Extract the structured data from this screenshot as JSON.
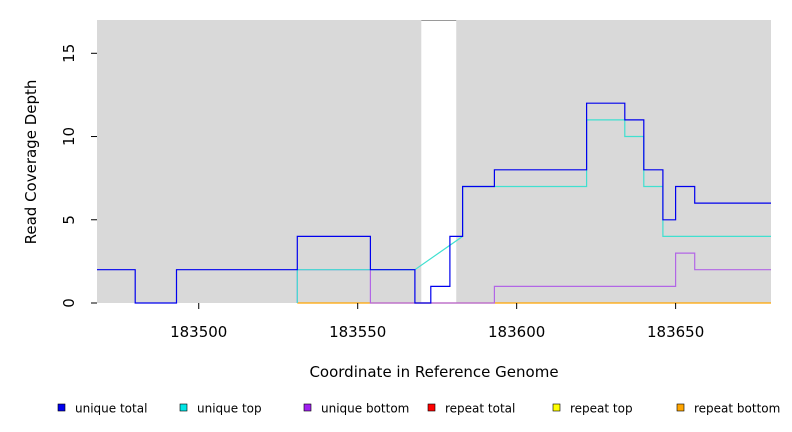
{
  "chart_data": {
    "type": "line",
    "step": true,
    "xlabel": "Coordinate in Reference Genome",
    "ylabel": "Read Coverage Depth",
    "xlim": [
      183468,
      183680
    ],
    "ylim": [
      0,
      17
    ],
    "x_ticks": [
      183500,
      183550,
      183600,
      183650
    ],
    "y_ticks": [
      0,
      5,
      10,
      15
    ],
    "grid": false,
    "background": "#d9d9d9",
    "gap_region": [
      183570,
      183581
    ],
    "legend_position": "bottom",
    "series": [
      {
        "name": "unique total",
        "color": "#0000ee",
        "x": [
          183468,
          183480,
          183480,
          183493,
          183493,
          183531,
          183531,
          183554,
          183554,
          183568,
          183568,
          183573,
          183573,
          183579,
          183579,
          183583,
          183583,
          183593,
          183593,
          183622,
          183622,
          183634,
          183634,
          183640,
          183640,
          183646,
          183646,
          183650,
          183650,
          183656,
          183656,
          183680
        ],
        "y": [
          2,
          2,
          0,
          0,
          2,
          2,
          4,
          4,
          2,
          2,
          0,
          0,
          1,
          1,
          4,
          4,
          7,
          7,
          8,
          8,
          12,
          12,
          11,
          11,
          8,
          8,
          5,
          5,
          7,
          7,
          6,
          6
        ]
      },
      {
        "name": "unique top",
        "color": "#40e0d0",
        "x": [
          183531,
          183531,
          183554,
          183554,
          183568,
          183583,
          183583,
          183593,
          183593,
          183622,
          183622,
          183634,
          183634,
          183640,
          183640,
          183646,
          183646,
          183680
        ],
        "y": [
          0,
          2,
          2,
          2,
          2,
          4,
          7,
          7,
          7,
          7,
          11,
          11,
          10,
          10,
          7,
          7,
          4,
          4
        ]
      },
      {
        "name": "unique bottom",
        "color": "#b266e6",
        "x": [
          183531,
          183531,
          183554,
          183554,
          183593,
          183593,
          183650,
          183650,
          183656,
          183656,
          183680
        ],
        "y": [
          0,
          2,
          2,
          0,
          0,
          1,
          1,
          3,
          3,
          2,
          2
        ]
      },
      {
        "name": "repeat total",
        "color": "#ff0000",
        "x": [],
        "y": []
      },
      {
        "name": "repeat top",
        "color": "#ffff00",
        "x": [],
        "y": []
      },
      {
        "name": "repeat bottom",
        "color": "#ffa500",
        "x": [
          183531,
          183680
        ],
        "y": [
          0,
          0
        ]
      }
    ],
    "legend": [
      {
        "label": "unique total",
        "color": "#0000ee"
      },
      {
        "label": "unique top",
        "color": "#00e5e5"
      },
      {
        "label": "unique bottom",
        "color": "#a020f0"
      },
      {
        "label": "repeat total",
        "color": "#ff0000"
      },
      {
        "label": "repeat top",
        "color": "#ffff00"
      },
      {
        "label": "repeat bottom",
        "color": "#ffa500"
      }
    ]
  }
}
